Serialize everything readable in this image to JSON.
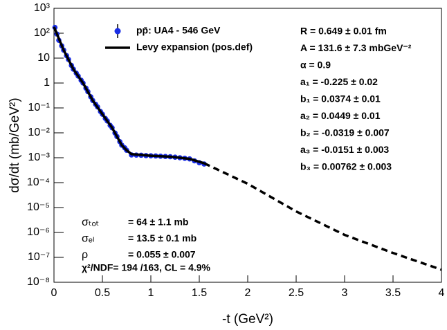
{
  "chart_data": {
    "type": "scatter",
    "xlabel": "-t (GeV²)",
    "ylabel": "dσ/dt (mb/GeV²)",
    "xlim": [
      0,
      4
    ],
    "xticks": [
      0,
      0.5,
      1,
      1.5,
      2,
      2.5,
      3,
      3.5,
      4
    ],
    "ylim": [
      1e-08,
      1000
    ],
    "log_y": true,
    "yticks": [
      {
        "value": 1e-08,
        "label": "10⁻⁸"
      },
      {
        "value": 1e-07,
        "label": "10⁻⁷"
      },
      {
        "value": 1e-06,
        "label": "10⁻⁶"
      },
      {
        "value": 1e-05,
        "label": "10⁻⁵"
      },
      {
        "value": 0.0001,
        "label": "10⁻⁴"
      },
      {
        "value": 0.001,
        "label": "10⁻³"
      },
      {
        "value": 0.01,
        "label": "10⁻²"
      },
      {
        "value": 0.1,
        "label": "10⁻¹"
      },
      1,
      10,
      {
        "value": 100,
        "label": "10²"
      },
      {
        "value": 1000,
        "label": "10³"
      }
    ],
    "series": [
      {
        "name": "pp̄: UA4 - 546 GeV",
        "color": "#1a2ee6",
        "style": "points",
        "x": [
          0.01,
          0.03,
          0.05,
          0.08,
          0.1,
          0.13,
          0.15,
          0.18,
          0.2,
          0.23,
          0.25,
          0.28,
          0.3,
          0.33,
          0.35,
          0.38,
          0.4,
          0.43,
          0.45,
          0.48,
          0.5,
          0.53,
          0.55,
          0.58,
          0.6,
          0.63,
          0.65,
          0.68,
          0.7,
          0.73,
          0.75,
          0.8,
          0.85,
          0.9,
          0.95,
          1.0,
          1.05,
          1.1,
          1.15,
          1.2,
          1.25,
          1.3,
          1.35,
          1.4,
          1.45,
          1.5,
          1.55
        ],
        "values": [
          170,
          93,
          52,
          31,
          21,
          12.6,
          8.8,
          5.1,
          3.6,
          2.5,
          1.9,
          1.3,
          1.0,
          0.62,
          0.45,
          0.28,
          0.2,
          0.14,
          0.11,
          0.072,
          0.056,
          0.038,
          0.03,
          0.02,
          0.016,
          0.0098,
          0.0071,
          0.0044,
          0.0032,
          0.0025,
          0.002,
          0.0013,
          0.00128,
          0.00126,
          0.00122,
          0.0012,
          0.00118,
          0.00115,
          0.00112,
          0.0011,
          0.00105,
          0.001,
          0.00095,
          0.0009,
          0.00075,
          0.00063,
          0.00056
        ]
      },
      {
        "name": "Levy expansion (pos.def)",
        "color": "#000000",
        "style": "solid",
        "x": [
          0,
          0.1,
          0.2,
          0.3,
          0.4,
          0.5,
          0.6,
          0.7,
          0.75,
          0.8,
          0.9,
          1.0,
          1.2,
          1.4,
          1.55
        ],
        "values": [
          180,
          21,
          3.6,
          1.0,
          0.2,
          0.056,
          0.016,
          0.0032,
          0.002,
          0.0014,
          0.0013,
          0.0012,
          0.0011,
          0.0009,
          0.0006
        ]
      },
      {
        "color": "#000000",
        "style": "dashed",
        "x": [
          1.55,
          2,
          2.5,
          3,
          3.5,
          4
        ],
        "values": [
          0.0006,
          9e-05,
          7e-06,
          8e-07,
          1.5e-07,
          3.2e-08
        ]
      }
    ],
    "fit_parameters": [
      "R = 0.649 ± 0.01 fm",
      "A = 131.6 ± 7.3 mbGeV⁻²",
      "α = 0.9",
      "a₁ = -0.225 ± 0.02",
      "b₁ = 0.0374 ± 0.01",
      "a₂ = 0.0449 ± 0.01",
      "b₂ = -0.0319 ± 0.007",
      "a₃ = -0.0151 ± 0.003",
      "b₃ = 0.00762 ± 0.003"
    ],
    "results": [
      {
        "name": "σₜₒₜ",
        "value": "= 64 ± 1.1 mb"
      },
      {
        "name": "σₑₗ",
        "value": "= 13.5 ± 0.1 mb"
      },
      {
        "name": "ρ",
        "value": "= 0.055 ± 0.007"
      }
    ],
    "chi2": "χ²/NDF= 194 /163,  CL = 4.9%"
  }
}
